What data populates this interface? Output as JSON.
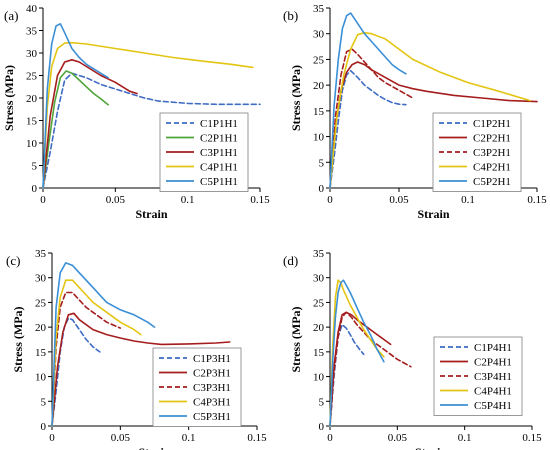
{
  "colors": {
    "blue": "#3E6BC4",
    "green": "#4FA63A",
    "darkred": "#A51C1C",
    "yellow": "#E3C512",
    "lightblue": "#3B8FD6"
  },
  "chart_data": [
    {
      "type": "line",
      "panel": "(a)",
      "xlabel": "Strain",
      "ylabel": "Stress (MPa)",
      "xlim": [
        0,
        0.15
      ],
      "ylim": [
        0,
        40
      ],
      "xticks": [
        "0",
        "0.05",
        "0.1",
        "0.15"
      ],
      "yticks": [
        "0",
        "5",
        "10",
        "15",
        "20",
        "25",
        "30",
        "35",
        "40"
      ],
      "legend_position": "bottom-right",
      "series": [
        {
          "name": "C1P1H1",
          "color": "#3E6BC4",
          "dash": "dashed",
          "x": [
            0,
            0.005,
            0.01,
            0.015,
            0.02,
            0.03,
            0.04,
            0.05,
            0.06,
            0.07,
            0.08,
            0.1,
            0.12,
            0.15
          ],
          "y": [
            0,
            8,
            17,
            24,
            25.5,
            24.5,
            23,
            22,
            21,
            20,
            19.3,
            18.8,
            18.6,
            18.6
          ]
        },
        {
          "name": "C2P1H1",
          "color": "#4FA63A",
          "dash": "solid",
          "x": [
            0,
            0.004,
            0.008,
            0.012,
            0.016,
            0.02,
            0.025,
            0.03,
            0.035,
            0.04,
            0.045
          ],
          "y": [
            0,
            10,
            19,
            24.5,
            26,
            25.5,
            24,
            22.5,
            21,
            19.8,
            18.5
          ]
        },
        {
          "name": "C3P1H1",
          "color": "#A51C1C",
          "dash": "solid",
          "x": [
            0,
            0.005,
            0.01,
            0.015,
            0.02,
            0.025,
            0.03,
            0.04,
            0.05,
            0.06,
            0.065
          ],
          "y": [
            0,
            16,
            25,
            28,
            28.5,
            28,
            27,
            25,
            23.5,
            21.5,
            21
          ]
        },
        {
          "name": "C4P1H1",
          "color": "#E3C512",
          "dash": "solid",
          "x": [
            0,
            0.003,
            0.006,
            0.01,
            0.015,
            0.02,
            0.03,
            0.05,
            0.07,
            0.09,
            0.11,
            0.13,
            0.145
          ],
          "y": [
            0,
            18,
            27,
            31,
            32.2,
            32.3,
            32,
            31,
            30,
            29,
            28.2,
            27.5,
            26.8
          ]
        },
        {
          "name": "C5P1H1",
          "color": "#3B8FD6",
          "dash": "solid",
          "x": [
            0,
            0.003,
            0.006,
            0.009,
            0.012,
            0.015,
            0.02,
            0.025,
            0.03,
            0.035,
            0.04,
            0.045
          ],
          "y": [
            0,
            22,
            32,
            36,
            36.5,
            34.5,
            31,
            29,
            27.5,
            26.5,
            25.5,
            24.5
          ]
        }
      ]
    },
    {
      "type": "line",
      "panel": "(b)",
      "xlabel": "Strain",
      "ylabel": "Stress (MPa)",
      "xlim": [
        0,
        0.15
      ],
      "ylim": [
        0,
        35
      ],
      "xticks": [
        "0",
        "0.05",
        "0.1",
        "0.15"
      ],
      "yticks": [
        "0",
        "5",
        "10",
        "15",
        "20",
        "25",
        "30",
        "35"
      ],
      "legend_position": "bottom-right",
      "series": [
        {
          "name": "C1P2H1",
          "color": "#3E6BC4",
          "dash": "dashed",
          "x": [
            0,
            0.003,
            0.006,
            0.009,
            0.012,
            0.015,
            0.02,
            0.025,
            0.03,
            0.035,
            0.04,
            0.045,
            0.05,
            0.055
          ],
          "y": [
            0,
            6,
            13,
            19,
            22,
            22.8,
            21.5,
            20,
            19,
            18,
            17.2,
            16.6,
            16.3,
            16.2
          ]
        },
        {
          "name": "C2P2H1",
          "color": "#A51C1C",
          "dash": "solid",
          "x": [
            0,
            0.004,
            0.008,
            0.012,
            0.016,
            0.02,
            0.025,
            0.03,
            0.04,
            0.05,
            0.06,
            0.07,
            0.09,
            0.11,
            0.13,
            0.15
          ],
          "y": [
            0,
            12,
            19,
            22.5,
            24,
            24.5,
            24,
            23,
            21.5,
            20,
            19.3,
            18.8,
            18,
            17.5,
            17,
            16.8
          ]
        },
        {
          "name": "C3P2H1",
          "color": "#A51C1C",
          "dash": "dashed",
          "x": [
            0,
            0.004,
            0.008,
            0.012,
            0.016,
            0.02,
            0.025,
            0.03,
            0.035,
            0.04,
            0.05,
            0.06
          ],
          "y": [
            0,
            14,
            22,
            26.5,
            27,
            26,
            24.5,
            23,
            21.5,
            20.5,
            19,
            17.5
          ]
        },
        {
          "name": "C4P2H1",
          "color": "#E3C512",
          "dash": "solid",
          "x": [
            0,
            0.005,
            0.01,
            0.015,
            0.02,
            0.025,
            0.03,
            0.04,
            0.05,
            0.06,
            0.08,
            0.1,
            0.12,
            0.145
          ],
          "y": [
            0,
            14,
            22,
            27,
            29.8,
            30.2,
            30,
            29,
            27,
            25,
            22.5,
            20.5,
            19,
            17
          ]
        },
        {
          "name": "C5P2H1",
          "color": "#3B8FD6",
          "dash": "solid",
          "x": [
            0,
            0.003,
            0.006,
            0.009,
            0.012,
            0.015,
            0.02,
            0.025,
            0.03,
            0.035,
            0.04,
            0.045,
            0.05,
            0.055
          ],
          "y": [
            0,
            16,
            25,
            31,
            33.5,
            34,
            32,
            30,
            28.5,
            27,
            25.5,
            24,
            23,
            22.2
          ]
        }
      ]
    },
    {
      "type": "line",
      "panel": "(c)",
      "xlabel": "Strain",
      "ylabel": "Stress (MPa)",
      "xlim": [
        0,
        0.15
      ],
      "ylim": [
        0,
        35
      ],
      "xticks": [
        "0",
        "0.05",
        "0.1",
        "0.15"
      ],
      "yticks": [
        "0",
        "5",
        "10",
        "15",
        "20",
        "25",
        "30",
        "35"
      ],
      "legend_position": "bottom-right",
      "series": [
        {
          "name": "C1P3H1",
          "color": "#3E6BC4",
          "dash": "dashed",
          "x": [
            0,
            0.003,
            0.006,
            0.009,
            0.012,
            0.015,
            0.02,
            0.025,
            0.03,
            0.035
          ],
          "y": [
            0,
            7,
            15,
            20,
            21.8,
            21.5,
            19.5,
            17.5,
            16,
            15
          ]
        },
        {
          "name": "C2P3H1",
          "color": "#A51C1C",
          "dash": "solid",
          "x": [
            0,
            0.004,
            0.008,
            0.012,
            0.016,
            0.02,
            0.03,
            0.04,
            0.05,
            0.06,
            0.07,
            0.08,
            0.1,
            0.12,
            0.13
          ],
          "y": [
            0,
            12,
            19,
            22.5,
            22.8,
            21.5,
            19.5,
            18.5,
            17.8,
            17.2,
            16.8,
            16.5,
            16.6,
            16.8,
            17
          ]
        },
        {
          "name": "C3P3H1",
          "color": "#A51C1C",
          "dash": "dashed",
          "x": [
            0,
            0.003,
            0.006,
            0.01,
            0.015,
            0.02,
            0.025,
            0.03,
            0.04,
            0.05
          ],
          "y": [
            0,
            16,
            24,
            27,
            27,
            25.5,
            24,
            23,
            21,
            19.8
          ]
        },
        {
          "name": "C4P3H1",
          "color": "#E3C512",
          "dash": "solid",
          "x": [
            0,
            0.003,
            0.006,
            0.01,
            0.015,
            0.02,
            0.025,
            0.03,
            0.04,
            0.05,
            0.06,
            0.065
          ],
          "y": [
            0,
            18,
            26,
            29.5,
            29.5,
            28,
            26.5,
            25,
            23,
            21,
            19.5,
            18.5
          ]
        },
        {
          "name": "C5P3H1",
          "color": "#3B8FD6",
          "dash": "solid",
          "x": [
            0,
            0.003,
            0.006,
            0.01,
            0.015,
            0.02,
            0.03,
            0.04,
            0.05,
            0.06,
            0.07,
            0.075
          ],
          "y": [
            0,
            24,
            31,
            33,
            32.5,
            31,
            28,
            25,
            23.5,
            22.5,
            21,
            20
          ]
        }
      ]
    },
    {
      "type": "line",
      "panel": "(d)",
      "xlabel": "Strain",
      "ylabel": "Stress (MPa)",
      "xlim": [
        0,
        0.15
      ],
      "ylim": [
        0,
        35
      ],
      "xticks": [
        "0",
        "0.05",
        "0.1",
        "0.15"
      ],
      "yticks": [
        "0",
        "5",
        "10",
        "15",
        "20",
        "25",
        "30",
        "35"
      ],
      "legend_position": "right",
      "series": [
        {
          "name": "C1P4H1",
          "color": "#3E6BC4",
          "dash": "dashed",
          "x": [
            0,
            0.003,
            0.006,
            0.009,
            0.012,
            0.015,
            0.018,
            0.022,
            0.025
          ],
          "y": [
            0,
            10,
            18,
            20.5,
            19.8,
            18.5,
            17,
            15.5,
            14.5
          ]
        },
        {
          "name": "C2P4H1",
          "color": "#A51C1C",
          "dash": "solid",
          "x": [
            0,
            0.003,
            0.006,
            0.009,
            0.012,
            0.016,
            0.02,
            0.025,
            0.03,
            0.035,
            0.04,
            0.045
          ],
          "y": [
            0,
            12,
            19,
            22.5,
            23,
            22.5,
            21.5,
            20.5,
            19.5,
            18.5,
            17.5,
            16.5
          ]
        },
        {
          "name": "C3P4H1",
          "color": "#A51C1C",
          "dash": "dashed",
          "x": [
            0,
            0.003,
            0.006,
            0.009,
            0.012,
            0.016,
            0.02,
            0.025,
            0.03,
            0.04,
            0.05,
            0.06
          ],
          "y": [
            0,
            11,
            18,
            22,
            23,
            22,
            20.5,
            19,
            17.5,
            15.5,
            13.5,
            12
          ]
        },
        {
          "name": "C4P4H1",
          "color": "#E3C512",
          "dash": "solid",
          "x": [
            0,
            0.002,
            0.004,
            0.006,
            0.008,
            0.01,
            0.015,
            0.02,
            0.025,
            0.03,
            0.035,
            0.04
          ],
          "y": [
            0,
            16,
            26,
            29.5,
            29,
            27.5,
            24.5,
            22,
            19.5,
            17.5,
            15.5,
            14
          ]
        },
        {
          "name": "C5P4H1",
          "color": "#3B8FD6",
          "dash": "solid",
          "x": [
            0,
            0.002,
            0.004,
            0.006,
            0.008,
            0.01,
            0.015,
            0.02,
            0.025,
            0.03,
            0.035,
            0.04
          ],
          "y": [
            0,
            13,
            22,
            27,
            29,
            29.5,
            27,
            24,
            21,
            18.5,
            15.5,
            13
          ]
        }
      ]
    }
  ]
}
